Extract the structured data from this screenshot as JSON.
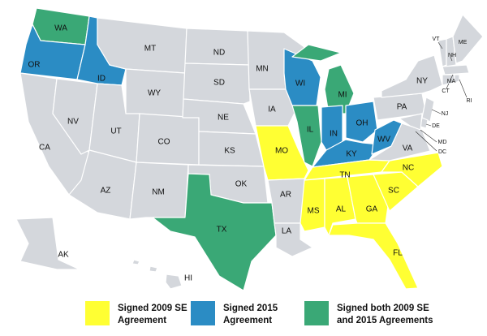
{
  "states": [
    {
      "abbr": "WA",
      "group": 2
    },
    {
      "abbr": "OR",
      "group": 1
    },
    {
      "abbr": "CA",
      "group": null
    },
    {
      "abbr": "NV",
      "group": null
    },
    {
      "abbr": "ID",
      "group": 1
    },
    {
      "abbr": "MT",
      "group": null
    },
    {
      "abbr": "WY",
      "group": null
    },
    {
      "abbr": "UT",
      "group": null
    },
    {
      "abbr": "AZ",
      "group": null
    },
    {
      "abbr": "CO",
      "group": null
    },
    {
      "abbr": "NM",
      "group": null
    },
    {
      "abbr": "ND",
      "group": null
    },
    {
      "abbr": "SD",
      "group": null
    },
    {
      "abbr": "NE",
      "group": null
    },
    {
      "abbr": "KS",
      "group": null
    },
    {
      "abbr": "OK",
      "group": null
    },
    {
      "abbr": "TX",
      "group": 2
    },
    {
      "abbr": "MN",
      "group": null
    },
    {
      "abbr": "IA",
      "group": null
    },
    {
      "abbr": "MO",
      "group": 0
    },
    {
      "abbr": "AR",
      "group": null
    },
    {
      "abbr": "LA",
      "group": null
    },
    {
      "abbr": "WI",
      "group": 1
    },
    {
      "abbr": "IL",
      "group": 2
    },
    {
      "abbr": "MI",
      "group": 2
    },
    {
      "abbr": "IN",
      "group": 1
    },
    {
      "abbr": "OH",
      "group": 1
    },
    {
      "abbr": "KY",
      "group": 1
    },
    {
      "abbr": "TN",
      "group": 0
    },
    {
      "abbr": "MS",
      "group": 0
    },
    {
      "abbr": "AL",
      "group": 0
    },
    {
      "abbr": "GA",
      "group": 0
    },
    {
      "abbr": "FL",
      "group": 0
    },
    {
      "abbr": "SC",
      "group": 0
    },
    {
      "abbr": "NC",
      "group": 0
    },
    {
      "abbr": "VA",
      "group": null
    },
    {
      "abbr": "WV",
      "group": 1
    },
    {
      "abbr": "PA",
      "group": null
    },
    {
      "abbr": "NY",
      "group": null
    },
    {
      "abbr": "NJ",
      "group": null
    },
    {
      "abbr": "DE",
      "group": null
    },
    {
      "abbr": "MD",
      "group": null
    },
    {
      "abbr": "DC",
      "group": null
    },
    {
      "abbr": "VT",
      "group": null
    },
    {
      "abbr": "NH",
      "group": null
    },
    {
      "abbr": "ME",
      "group": null
    },
    {
      "abbr": "MA",
      "group": null
    },
    {
      "abbr": "CT",
      "group": null
    },
    {
      "abbr": "RI",
      "group": null
    },
    {
      "abbr": "AK",
      "group": null
    },
    {
      "abbr": "HI",
      "group": null
    }
  ],
  "other_color": "#d4d7dc",
  "legend": [
    {
      "color": "#ffff33",
      "label": [
        "Signed 2009 SE",
        "Agreement"
      ]
    },
    {
      "color": "#2b8cc4",
      "label": [
        "Signed 2015",
        "Agreement"
      ]
    },
    {
      "color": "#3aa876",
      "label": [
        "Signed both 2009 SE",
        "and 2015 Agreements"
      ]
    }
  ]
}
